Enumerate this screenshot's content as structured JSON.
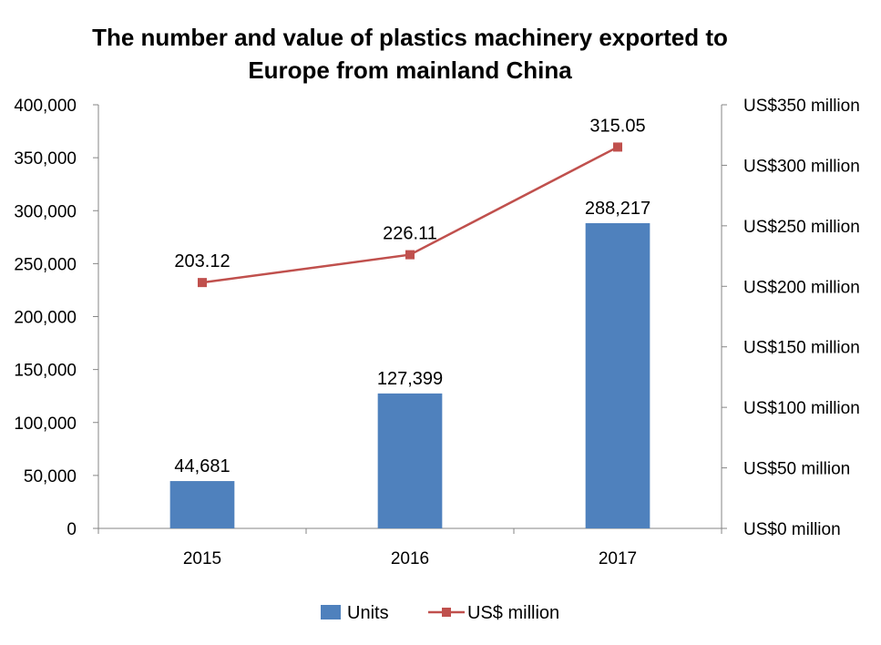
{
  "chart_data": {
    "type": "bar",
    "title_line1": "The number and value of plastics machinery exported to",
    "title_line2": "Europe from mainland China",
    "categories": [
      "2015",
      "2016",
      "2017"
    ],
    "series": [
      {
        "name": "Units",
        "kind": "bar",
        "axis": "left",
        "color": "#4F81BD",
        "values": [
          44681,
          127399,
          288217
        ],
        "labels": [
          "44,681",
          "127,399",
          "288,217"
        ]
      },
      {
        "name": "US$ million",
        "kind": "line",
        "axis": "right",
        "color": "#C0504D",
        "values": [
          203.12,
          226.11,
          315.05
        ],
        "labels": [
          "203.12",
          "226.11",
          "315.05"
        ]
      }
    ],
    "left_axis": {
      "ylim": [
        0,
        400000
      ],
      "ticks": [
        0,
        50000,
        100000,
        150000,
        200000,
        250000,
        300000,
        350000,
        400000
      ],
      "tick_labels": [
        "0",
        "50,000",
        "100,000",
        "150,000",
        "200,000",
        "250,000",
        "300,000",
        "350,000",
        "400,000"
      ]
    },
    "right_axis": {
      "ylim": [
        0,
        350
      ],
      "ticks": [
        0,
        50,
        100,
        150,
        200,
        250,
        300,
        350
      ],
      "tick_labels": [
        "US$0 million",
        "US$50 million",
        "US$100 million",
        "US$150 million",
        "US$200 million",
        "US$250 million",
        "US$300 million",
        "US$350 million"
      ]
    },
    "grid": false,
    "legend_position": "bottom"
  }
}
